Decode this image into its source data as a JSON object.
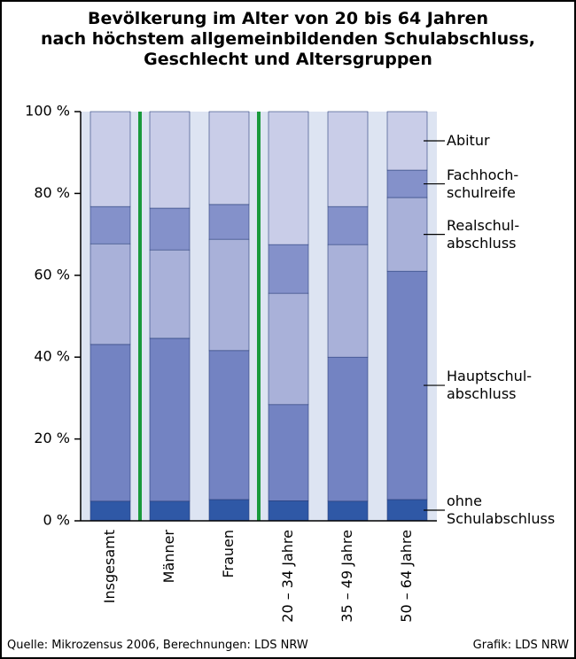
{
  "chart_data": {
    "type": "stacked_bar",
    "title": "Bevölkerung im Alter von 20 bis 64 Jahren\nnach höchstem allgemeinbildenden Schulabschluss,\nGeschlecht und Altersgruppen",
    "categories": [
      "Insgesamt",
      "Männer",
      "Frauen",
      "20 – 34 Jahre",
      "35 – 49 Jahre",
      "50 – 64 Jahre"
    ],
    "series": [
      {
        "name": "ohne\nSchulabschluss",
        "color": "#2f58a6",
        "values": [
          4.8,
          4.8,
          5.2,
          4.9,
          4.8,
          5.2
        ]
      },
      {
        "name": "Hauptschul-\nabschluss",
        "color": "#7383c2",
        "values": [
          38.3,
          39.8,
          36.4,
          23.5,
          35.2,
          55.8
        ]
      },
      {
        "name": "Realschul-\nabschluss",
        "color": "#a9b1d9",
        "values": [
          24.6,
          21.6,
          27.2,
          27.2,
          27.5,
          18.0
        ]
      },
      {
        "name": "Fachhoch-\nschulreife",
        "color": "#8491ca",
        "values": [
          9.1,
          10.2,
          8.5,
          11.9,
          9.3,
          6.7
        ]
      },
      {
        "name": "Abitur",
        "color": "#c9cde8",
        "values": [
          23.2,
          23.6,
          22.7,
          32.5,
          23.2,
          14.3
        ]
      }
    ],
    "ylim": [
      0,
      100
    ],
    "yticks": [
      {
        "value": 0,
        "label": "0 %"
      },
      {
        "value": 20,
        "label": "20 %"
      },
      {
        "value": 40,
        "label": "40 %"
      },
      {
        "value": 60,
        "label": "60 %"
      },
      {
        "value": 80,
        "label": "80 %"
      },
      {
        "value": 100,
        "label": "100 %"
      }
    ],
    "source": "Quelle: Mikrozensus 2006, Berechnungen: LDS NRW",
    "credit": "Grafik: LDS NRW"
  }
}
